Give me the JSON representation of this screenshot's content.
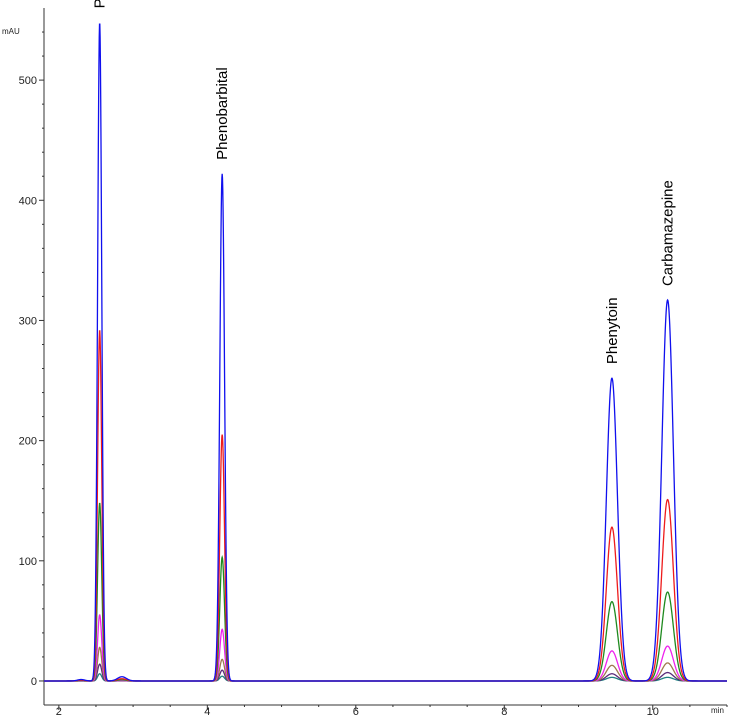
{
  "chart_data": {
    "type": "line",
    "title": "",
    "y_unit_label": "mAU",
    "x_unit_label": "min",
    "xlim": [
      1.8,
      11.0
    ],
    "ylim": [
      -20,
      560
    ],
    "x_ticks": [
      2,
      4,
      6,
      8,
      10
    ],
    "y_ticks": [
      0,
      100,
      200,
      300,
      400,
      500
    ],
    "grid": false,
    "peaks": [
      {
        "name": "Primidone",
        "rt": 2.55,
        "sigma": 0.028
      },
      {
        "name": "Phenobarbital",
        "rt": 4.2,
        "sigma": 0.032
      },
      {
        "name": "Phenytoin",
        "rt": 9.45,
        "sigma": 0.075
      },
      {
        "name": "Carbamazepine",
        "rt": 10.2,
        "sigma": 0.078
      }
    ],
    "series": [
      {
        "color": "#1010ee",
        "heights": [
          548,
          422,
          252,
          317
        ]
      },
      {
        "color": "#ee1c1c",
        "heights": [
          292,
          205,
          128,
          151
        ]
      },
      {
        "color": "#1f8a1f",
        "heights": [
          148,
          103,
          66,
          74
        ]
      },
      {
        "color": "#ee22ee",
        "heights": [
          55,
          43,
          25,
          29
        ]
      },
      {
        "color": "#a07850",
        "heights": [
          28,
          18,
          13,
          15
        ]
      },
      {
        "color": "#5a2a7a",
        "heights": [
          14,
          9,
          6,
          7
        ]
      },
      {
        "color": "#208080",
        "heights": [
          6,
          4,
          3,
          3
        ]
      }
    ]
  }
}
